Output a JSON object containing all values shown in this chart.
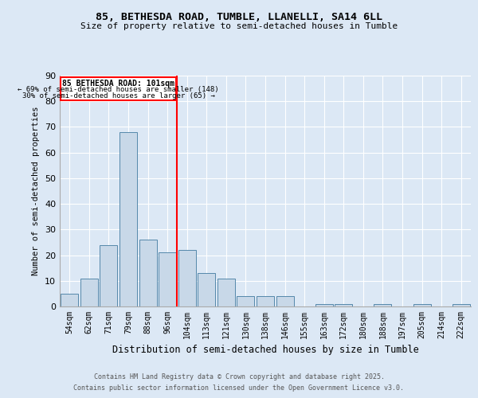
{
  "title1": "85, BETHESDA ROAD, TUMBLE, LLANELLI, SA14 6LL",
  "title2": "Size of property relative to semi-detached houses in Tumble",
  "xlabel": "Distribution of semi-detached houses by size in Tumble",
  "ylabel": "Number of semi-detached properties",
  "categories": [
    "54sqm",
    "62sqm",
    "71sqm",
    "79sqm",
    "88sqm",
    "96sqm",
    "104sqm",
    "113sqm",
    "121sqm",
    "130sqm",
    "138sqm",
    "146sqm",
    "155sqm",
    "163sqm",
    "172sqm",
    "180sqm",
    "188sqm",
    "197sqm",
    "205sqm",
    "214sqm",
    "222sqm"
  ],
  "values": [
    5,
    11,
    24,
    68,
    26,
    21,
    22,
    13,
    11,
    4,
    4,
    4,
    0,
    1,
    1,
    0,
    1,
    0,
    1,
    0,
    1
  ],
  "bar_color": "#c8d8e8",
  "bar_edge_color": "#5588aa",
  "vline_x": 5.5,
  "vline_color": "red",
  "annotation_title": "85 BETHESDA ROAD: 101sqm",
  "annotation_line1": "← 69% of semi-detached houses are smaller (148)",
  "annotation_line2": "30% of semi-detached houses are larger (65) →",
  "ylim": [
    0,
    90
  ],
  "yticks": [
    0,
    10,
    20,
    30,
    40,
    50,
    60,
    70,
    80,
    90
  ],
  "footer1": "Contains HM Land Registry data © Crown copyright and database right 2025.",
  "footer2": "Contains public sector information licensed under the Open Government Licence v3.0.",
  "bg_color": "#dce8f5",
  "plot_bg_color": "#dce8f5"
}
